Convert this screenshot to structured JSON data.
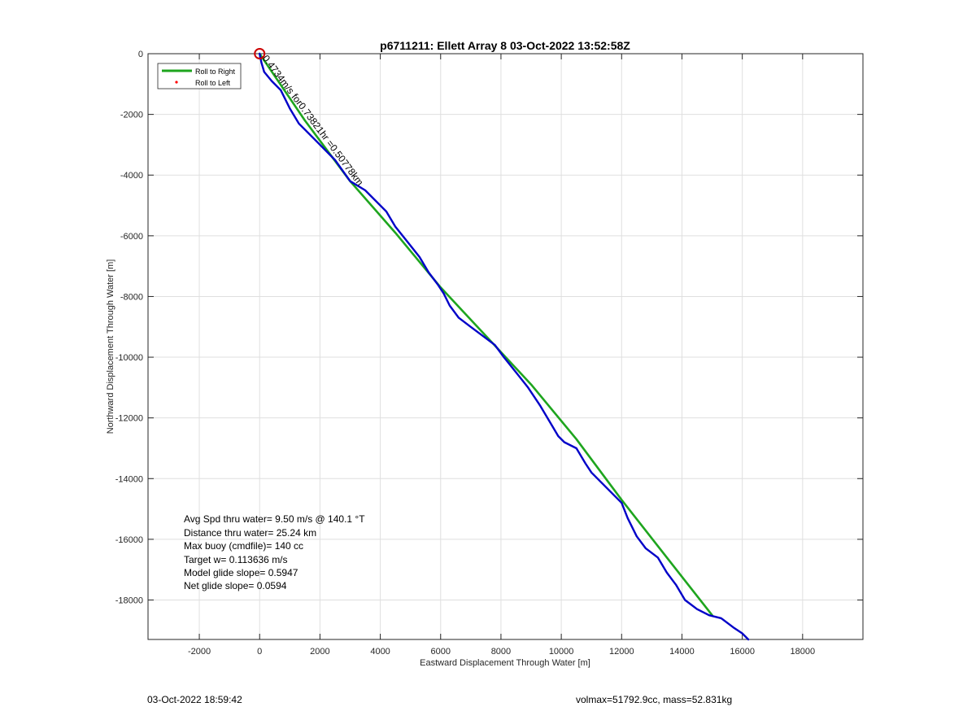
{
  "chart_data": {
    "type": "line",
    "title": "p6711211: Ellett Array 8 03-Oct-2022 13:52:58Z",
    "xlabel": "Eastward Displacement Through Water [m]",
    "ylabel": "Northward Displacement Through Water [m]",
    "xlim": [
      -3700,
      20000
    ],
    "ylim": [
      -19300,
      0
    ],
    "xticks": [
      -2000,
      0,
      2000,
      4000,
      6000,
      8000,
      10000,
      12000,
      14000,
      16000,
      18000
    ],
    "yticks": [
      0,
      -2000,
      -4000,
      -6000,
      -8000,
      -10000,
      -12000,
      -14000,
      -16000,
      -18000
    ],
    "grid": true,
    "legend": {
      "placement": "top-left",
      "entries": [
        "Roll to Right",
        "Roll to Left"
      ]
    },
    "series": [
      {
        "name": "Roll to Right",
        "color": "#1ea51e",
        "x": [
          0,
          1500,
          3000,
          4500,
          6000,
          7500,
          9000,
          10500,
          12000,
          13500,
          15000
        ],
        "y": [
          0,
          -2200,
          -4200,
          -5900,
          -7700,
          -9300,
          -10900,
          -12700,
          -14700,
          -16600,
          -18500
        ]
      },
      {
        "name": "Roll to Left",
        "color": "#ff0000",
        "x": [],
        "y": []
      },
      {
        "color": "#0000c8",
        "x": [
          0,
          60,
          150,
          400,
          700,
          1000,
          1300,
          1900,
          2500,
          3000,
          3500,
          3800,
          4200,
          4500,
          4900,
          5300,
          5600,
          5900,
          6100,
          6300,
          6600,
          7000,
          7400,
          7800,
          8100,
          8500,
          8900,
          9300,
          9600,
          9900,
          10100,
          10500,
          10800,
          11000,
          11400,
          12000,
          12200,
          12500,
          12800,
          13200,
          13500,
          13800,
          14100,
          14500,
          14900,
          15300,
          15700,
          16000,
          16200
        ],
        "y": [
          0,
          -300,
          -600,
          -900,
          -1200,
          -1800,
          -2300,
          -2900,
          -3500,
          -4200,
          -4500,
          -4800,
          -5200,
          -5700,
          -6200,
          -6700,
          -7200,
          -7600,
          -7900,
          -8300,
          -8700,
          -9000,
          -9300,
          -9600,
          -10000,
          -10500,
          -11000,
          -11600,
          -12100,
          -12600,
          -12800,
          -13000,
          -13500,
          -13800,
          -14200,
          -14800,
          -15300,
          -15900,
          -16300,
          -16600,
          -17100,
          -17500,
          -18000,
          -18300,
          -18500,
          -18600,
          -18900,
          -19100,
          -19300
        ]
      }
    ],
    "markers": [
      {
        "x": 0,
        "y": 0,
        "shape": "circle",
        "color": "#cc0000"
      }
    ],
    "annotation": "0.4734m/s for0.73821hr =0.50778km",
    "annotation_at": {
      "x": 80,
      "y": -150,
      "angle_deg": 53
    },
    "stats": [
      "Avg Spd thru water=  9.50 m/s @ 140.1 °T",
      "Distance thru water= 25.24 km",
      "Max buoy (cmdfile)= 140 cc",
      "Target w= 0.113636 m/s",
      "Model glide slope= 0.5947",
      "Net glide slope= 0.0594"
    ]
  },
  "footer": {
    "timestamp": "03-Oct-2022 18:59:42",
    "vol_mass": "volmax=51792.9cc, mass=52.831kg"
  }
}
